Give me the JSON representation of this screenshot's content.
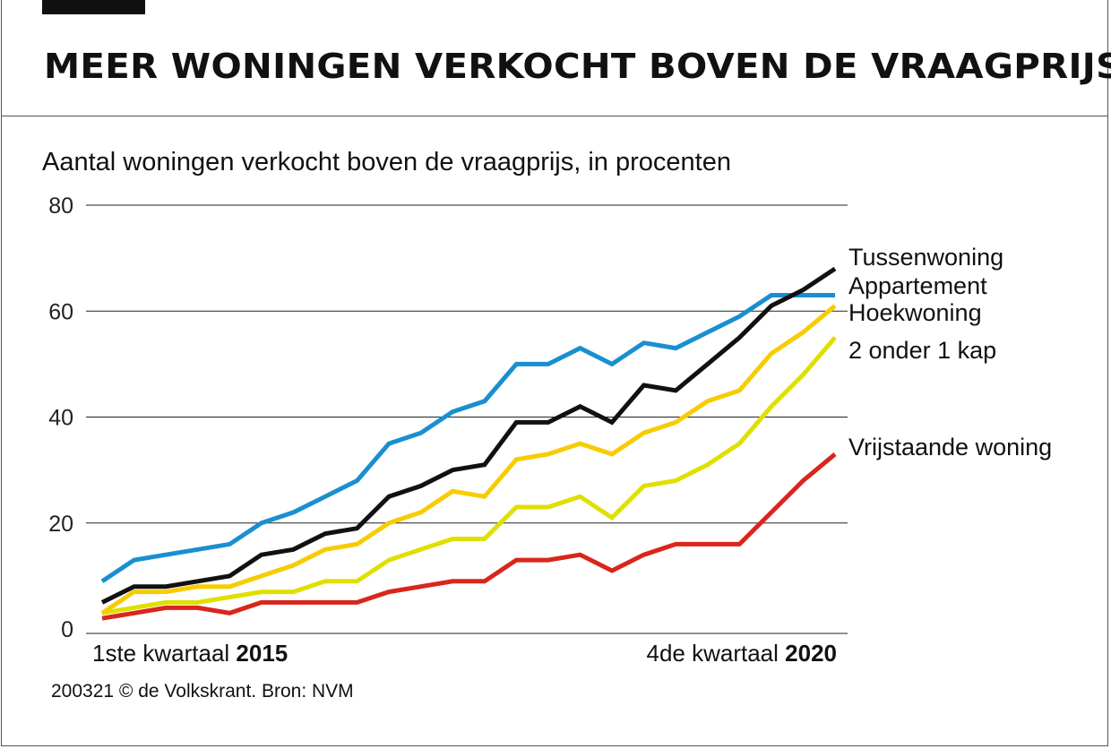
{
  "title": "MEER WONINGEN VERKOCHT BOVEN DE VRAAGPRIJS",
  "subtitle": "Aantal woningen verkocht boven de vraagprijs, in procenten",
  "footer": "200321 © de Volkskrant. Bron: NVM",
  "chart_data": {
    "type": "line",
    "y_ticks": [
      "80",
      "60",
      "40",
      "20",
      "0"
    ],
    "ylim": [
      0,
      80
    ],
    "x_start": {
      "prefix": "1ste kwartaal ",
      "bold": "2015"
    },
    "x_end": {
      "prefix": "4de kwartaal ",
      "bold": "2020"
    },
    "x": [
      "2015 Q1",
      "2015 Q2",
      "2015 Q3",
      "2015 Q4",
      "2016 Q1",
      "2016 Q2",
      "2016 Q3",
      "2016 Q4",
      "2017 Q1",
      "2017 Q2",
      "2017 Q3",
      "2017 Q4",
      "2018 Q1",
      "2018 Q2",
      "2018 Q3",
      "2018 Q4",
      "2019 Q1",
      "2019 Q2",
      "2019 Q3",
      "2019 Q4",
      "2020 Q1",
      "2020 Q2",
      "2020 Q3",
      "2020 Q4"
    ],
    "grid": true,
    "series": [
      {
        "name": "Tussenwoning",
        "color": "#111111",
        "values": [
          5,
          8,
          8,
          9,
          10,
          14,
          15,
          18,
          19,
          25,
          27,
          30,
          31,
          39,
          39,
          42,
          39,
          46,
          45,
          50,
          55,
          61,
          64,
          68
        ]
      },
      {
        "name": "Appartement",
        "color": "#1a8fd0",
        "values": [
          9,
          13,
          14,
          15,
          16,
          20,
          22,
          25,
          28,
          35,
          37,
          41,
          43,
          50,
          50,
          53,
          50,
          54,
          53,
          56,
          59,
          63,
          63,
          63
        ]
      },
      {
        "name": "Hoekwoning",
        "color": "#f7cc00",
        "values": [
          3,
          7,
          7,
          8,
          8,
          10,
          12,
          15,
          16,
          20,
          22,
          26,
          25,
          32,
          33,
          35,
          33,
          37,
          39,
          43,
          45,
          52,
          56,
          61
        ]
      },
      {
        "name": "2 onder 1 kap",
        "color": "#dfe000",
        "values": [
          3,
          4,
          5,
          5,
          6,
          7,
          7,
          9,
          9,
          13,
          15,
          17,
          17,
          23,
          23,
          25,
          21,
          27,
          28,
          31,
          35,
          42,
          48,
          55
        ]
      },
      {
        "name": "Vrijstaande woning",
        "color": "#d9261c",
        "values": [
          2,
          3,
          4,
          4,
          3,
          5,
          5,
          5,
          5,
          7,
          8,
          9,
          9,
          13,
          13,
          14,
          11,
          14,
          16,
          16,
          16,
          22,
          28,
          33
        ]
      }
    ]
  }
}
